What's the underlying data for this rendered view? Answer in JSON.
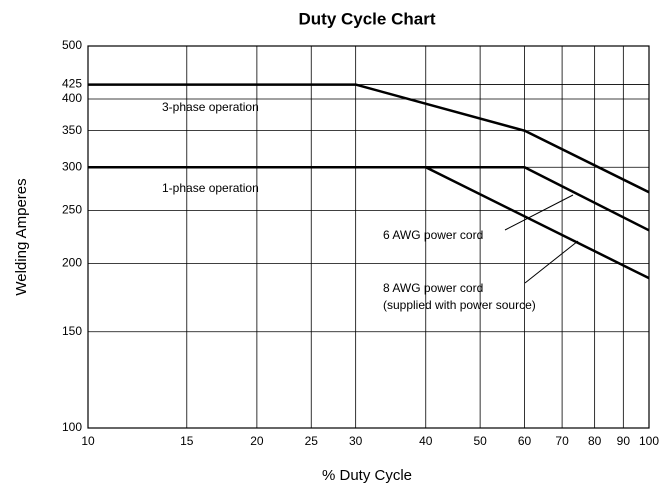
{
  "chart_data": {
    "type": "line",
    "title": "Duty Cycle Chart",
    "xlabel": "% Duty Cycle",
    "ylabel": "Welding Amperes",
    "log_x": true,
    "log_y": true,
    "grid": true,
    "xlim": [
      10,
      100
    ],
    "ylim": [
      100,
      500
    ],
    "xticks": [
      10,
      15,
      20,
      25,
      30,
      40,
      50,
      60,
      70,
      80,
      90,
      100
    ],
    "yticks": [
      100,
      150,
      200,
      250,
      300,
      350,
      400,
      425,
      500
    ],
    "series": [
      {
        "name": "3-phase operation",
        "color": "#000000",
        "x": [
          10,
          30,
          60,
          100
        ],
        "values": [
          425,
          425,
          350,
          270
        ]
      },
      {
        "name": "6 AWG power cord",
        "color": "#000000",
        "x": [
          10,
          60,
          100
        ],
        "values": [
          300,
          300,
          230
        ]
      },
      {
        "name": "8 AWG power cord",
        "color": "#000000",
        "x": [
          10,
          40,
          100
        ],
        "values": [
          300,
          300,
          188
        ]
      }
    ],
    "annotations": [
      "1-phase operation",
      "(supplied with power source)"
    ]
  }
}
